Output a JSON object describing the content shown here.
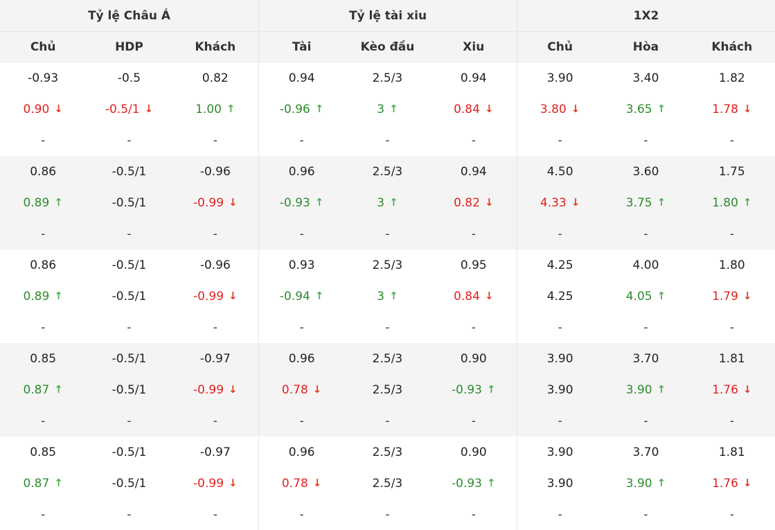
{
  "groups": [
    "Tỷ lệ Châu Á",
    "Tỷ lệ tài xiu",
    "1X2"
  ],
  "columns": [
    "Chủ",
    "HDP",
    "Khách",
    "Tài",
    "Kèo đầu",
    "Xiu",
    "Chủ",
    "Hòa",
    "Khách"
  ],
  "colors": {
    "up": "#2e8b2e",
    "down": "#e02020",
    "header_bg": "#f4f4f4"
  },
  "rows": [
    {
      "open": [
        {
          "v": "-0.93"
        },
        {
          "v": "-0.5"
        },
        {
          "v": "0.82"
        },
        {
          "v": "0.94"
        },
        {
          "v": "2.5/3"
        },
        {
          "v": "0.94"
        },
        {
          "v": "3.90"
        },
        {
          "v": "3.40"
        },
        {
          "v": "1.82"
        }
      ],
      "live": [
        {
          "v": "0.90",
          "t": "down"
        },
        {
          "v": "-0.5/1",
          "t": "down"
        },
        {
          "v": "1.00",
          "t": "up"
        },
        {
          "v": "-0.96",
          "t": "up"
        },
        {
          "v": "3",
          "t": "up"
        },
        {
          "v": "0.84",
          "t": "down"
        },
        {
          "v": "3.80",
          "t": "down"
        },
        {
          "v": "3.65",
          "t": "up"
        },
        {
          "v": "1.78",
          "t": "down"
        }
      ],
      "close": [
        "-",
        "-",
        "-",
        "-",
        "-",
        "-",
        "-",
        "-",
        "-"
      ]
    },
    {
      "open": [
        {
          "v": "0.86"
        },
        {
          "v": "-0.5/1"
        },
        {
          "v": "-0.96"
        },
        {
          "v": "0.96"
        },
        {
          "v": "2.5/3"
        },
        {
          "v": "0.94"
        },
        {
          "v": "4.50"
        },
        {
          "v": "3.60"
        },
        {
          "v": "1.75"
        }
      ],
      "live": [
        {
          "v": "0.89",
          "t": "up"
        },
        {
          "v": "-0.5/1"
        },
        {
          "v": "-0.99",
          "t": "down"
        },
        {
          "v": "-0.93",
          "t": "up"
        },
        {
          "v": "3",
          "t": "up"
        },
        {
          "v": "0.82",
          "t": "down"
        },
        {
          "v": "4.33",
          "t": "down"
        },
        {
          "v": "3.75",
          "t": "up"
        },
        {
          "v": "1.80",
          "t": "up"
        }
      ],
      "close": [
        "-",
        "-",
        "-",
        "-",
        "-",
        "-",
        "-",
        "-",
        "-"
      ]
    },
    {
      "open": [
        {
          "v": "0.86"
        },
        {
          "v": "-0.5/1"
        },
        {
          "v": "-0.96"
        },
        {
          "v": "0.93"
        },
        {
          "v": "2.5/3"
        },
        {
          "v": "0.95"
        },
        {
          "v": "4.25"
        },
        {
          "v": "4.00"
        },
        {
          "v": "1.80"
        }
      ],
      "live": [
        {
          "v": "0.89",
          "t": "up"
        },
        {
          "v": "-0.5/1"
        },
        {
          "v": "-0.99",
          "t": "down"
        },
        {
          "v": "-0.94",
          "t": "up"
        },
        {
          "v": "3",
          "t": "up"
        },
        {
          "v": "0.84",
          "t": "down"
        },
        {
          "v": "4.25"
        },
        {
          "v": "4.05",
          "t": "up"
        },
        {
          "v": "1.79",
          "t": "down"
        }
      ],
      "close": [
        "-",
        "-",
        "-",
        "-",
        "-",
        "-",
        "-",
        "-",
        "-"
      ]
    },
    {
      "open": [
        {
          "v": "0.85"
        },
        {
          "v": "-0.5/1"
        },
        {
          "v": "-0.97"
        },
        {
          "v": "0.96"
        },
        {
          "v": "2.5/3"
        },
        {
          "v": "0.90"
        },
        {
          "v": "3.90"
        },
        {
          "v": "3.70"
        },
        {
          "v": "1.81"
        }
      ],
      "live": [
        {
          "v": "0.87",
          "t": "up"
        },
        {
          "v": "-0.5/1"
        },
        {
          "v": "-0.99",
          "t": "down"
        },
        {
          "v": "0.78",
          "t": "down"
        },
        {
          "v": "2.5/3"
        },
        {
          "v": "-0.93",
          "t": "up"
        },
        {
          "v": "3.90"
        },
        {
          "v": "3.90",
          "t": "up"
        },
        {
          "v": "1.76",
          "t": "down"
        }
      ],
      "close": [
        "-",
        "-",
        "-",
        "-",
        "-",
        "-",
        "-",
        "-",
        "-"
      ]
    },
    {
      "open": [
        {
          "v": "0.85"
        },
        {
          "v": "-0.5/1"
        },
        {
          "v": "-0.97"
        },
        {
          "v": "0.96"
        },
        {
          "v": "2.5/3"
        },
        {
          "v": "0.90"
        },
        {
          "v": "3.90"
        },
        {
          "v": "3.70"
        },
        {
          "v": "1.81"
        }
      ],
      "live": [
        {
          "v": "0.87",
          "t": "up"
        },
        {
          "v": "-0.5/1"
        },
        {
          "v": "-0.99",
          "t": "down"
        },
        {
          "v": "0.78",
          "t": "down"
        },
        {
          "v": "2.5/3"
        },
        {
          "v": "-0.93",
          "t": "up"
        },
        {
          "v": "3.90"
        },
        {
          "v": "3.90",
          "t": "up"
        },
        {
          "v": "1.76",
          "t": "down"
        }
      ],
      "close": [
        "-",
        "-",
        "-",
        "-",
        "-",
        "-",
        "-",
        "-",
        "-"
      ]
    }
  ]
}
